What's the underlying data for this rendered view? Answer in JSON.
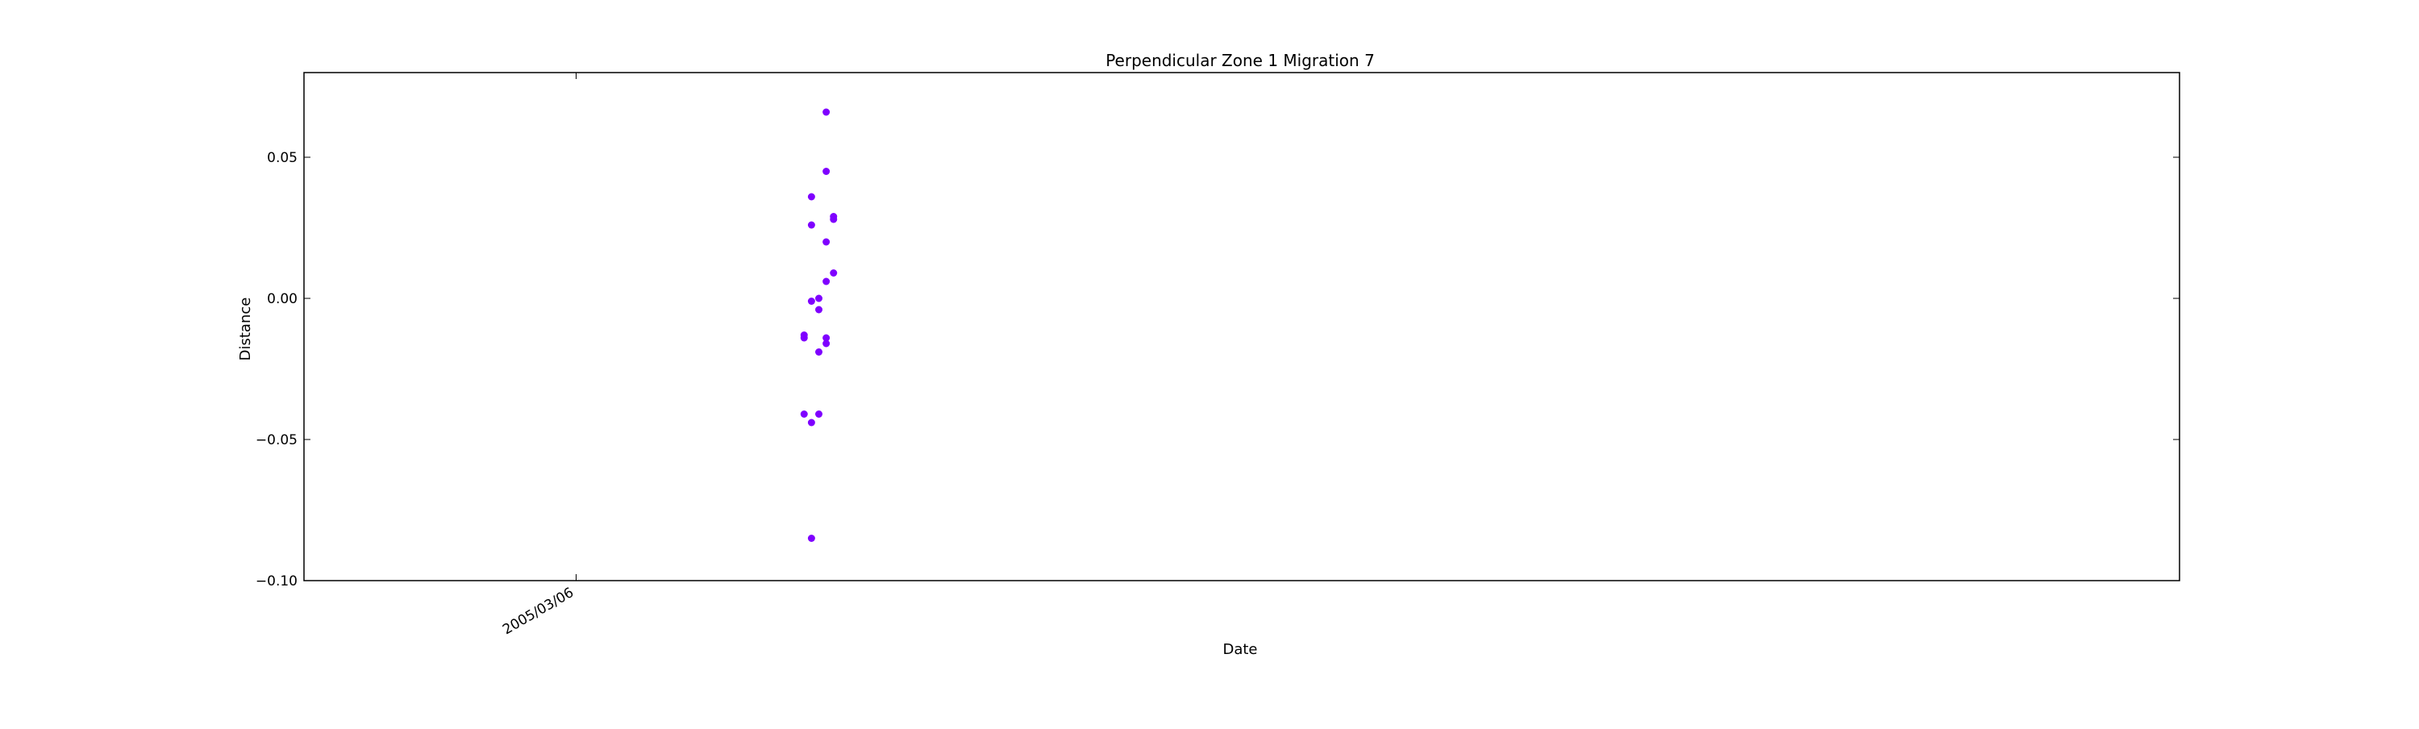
{
  "chart_data": {
    "type": "scatter",
    "title": "Perpendicular Zone 1 Migration 7",
    "xlabel": "Date",
    "ylabel": "Distance",
    "xlim": [
      "2005-01-28",
      "2005-10-10"
    ],
    "ylim": [
      -0.1,
      0.08
    ],
    "grid": false,
    "x_ticks": [
      {
        "date": "2005-03-06",
        "label": "2005/03/06"
      }
    ],
    "y_ticks": [
      {
        "value": -0.1,
        "label": "−0.10"
      },
      {
        "value": -0.05,
        "label": "−0.05"
      },
      {
        "value": 0.0,
        "label": "0.00"
      },
      {
        "value": 0.05,
        "label": "0.05"
      }
    ],
    "marker_color": "#7f00ff",
    "series": [
      {
        "points": [
          {
            "x": "2005-04-06",
            "y": -0.041
          },
          {
            "x": "2005-04-06",
            "y": -0.013
          },
          {
            "x": "2005-04-06",
            "y": -0.014
          },
          {
            "x": "2005-04-07",
            "y": -0.001
          },
          {
            "x": "2005-04-07",
            "y": 0.036
          },
          {
            "x": "2005-04-07",
            "y": -0.085
          },
          {
            "x": "2005-04-07",
            "y": 0.026
          },
          {
            "x": "2005-04-07",
            "y": -0.044
          },
          {
            "x": "2005-04-08",
            "y": 0.0
          },
          {
            "x": "2005-04-08",
            "y": -0.004
          },
          {
            "x": "2005-04-08",
            "y": -0.041
          },
          {
            "x": "2005-04-08",
            "y": -0.019
          },
          {
            "x": "2005-04-09",
            "y": -0.016
          },
          {
            "x": "2005-04-09",
            "y": -0.014
          },
          {
            "x": "2005-04-09",
            "y": 0.006
          },
          {
            "x": "2005-04-09",
            "y": 0.02
          },
          {
            "x": "2005-04-09",
            "y": 0.066
          },
          {
            "x": "2005-04-09",
            "y": 0.045
          },
          {
            "x": "2005-04-10",
            "y": 0.029
          },
          {
            "x": "2005-04-10",
            "y": 0.028
          },
          {
            "x": "2005-04-10",
            "y": 0.009
          }
        ]
      }
    ]
  }
}
